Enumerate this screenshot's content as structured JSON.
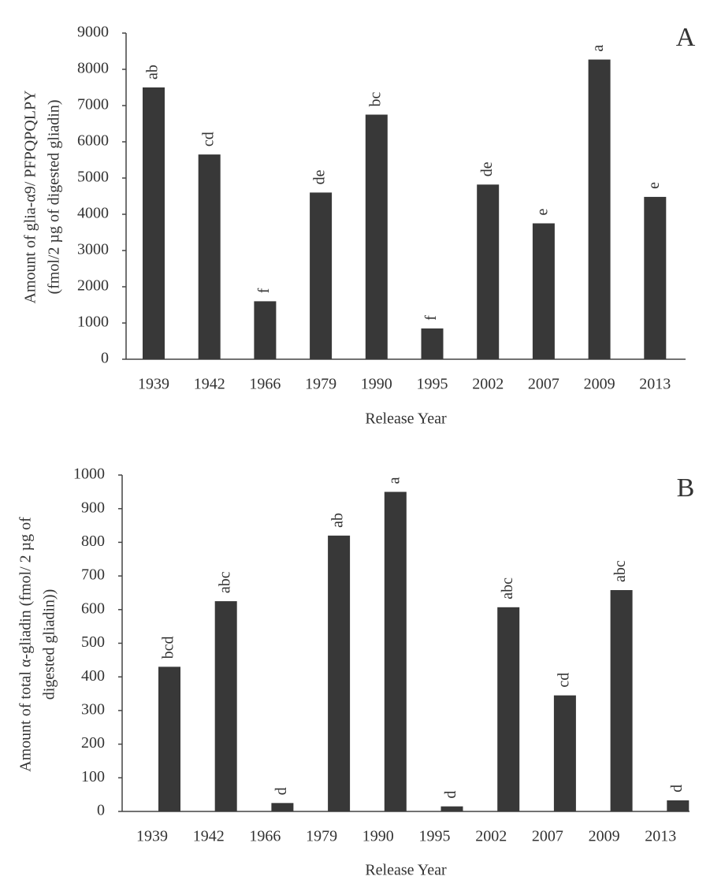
{
  "chart_data": [
    {
      "type": "bar",
      "panel": "A",
      "y_label": [
        "Amount of glia-α9/ PFPQPQLPY",
        "(fmol/2 µg of digested gliadin)"
      ],
      "x_label": "Release Year",
      "categories": [
        "1939",
        "1942",
        "1966",
        "1979",
        "1990",
        "1995",
        "2002",
        "2007",
        "2009",
        "2013"
      ],
      "values": [
        7500,
        5650,
        1600,
        4600,
        6750,
        850,
        4820,
        3750,
        8270,
        4480
      ],
      "annotations": [
        "ab",
        "cd",
        "f",
        "de",
        "bc",
        "f",
        "de",
        "e",
        "a",
        "e"
      ],
      "color": "#383838",
      "ylim": [
        0,
        9000
      ],
      "yticks": [
        0,
        1000,
        2000,
        3000,
        4000,
        5000,
        6000,
        7000,
        8000,
        9000
      ]
    },
    {
      "type": "bar",
      "panel": "B",
      "y_label": [
        "Amount of total α-gliadin (fmol/ 2 µg of",
        "digested gliadin))"
      ],
      "x_label": "Release Year",
      "categories": [
        "1939",
        "1942",
        "1966",
        "1979",
        "1990",
        "1995",
        "2002",
        "2007",
        "2009",
        "2013"
      ],
      "values": [
        430,
        625,
        25,
        820,
        950,
        15,
        607,
        345,
        658,
        33
      ],
      "annotations": [
        "bcd",
        "abc",
        "d",
        "ab",
        "a",
        "d",
        "abc",
        "cd",
        "abc",
        "d"
      ],
      "color": "#383838",
      "ylim": [
        0,
        1000
      ],
      "yticks": [
        0,
        100,
        200,
        300,
        400,
        500,
        600,
        700,
        800,
        900,
        1000
      ]
    }
  ]
}
